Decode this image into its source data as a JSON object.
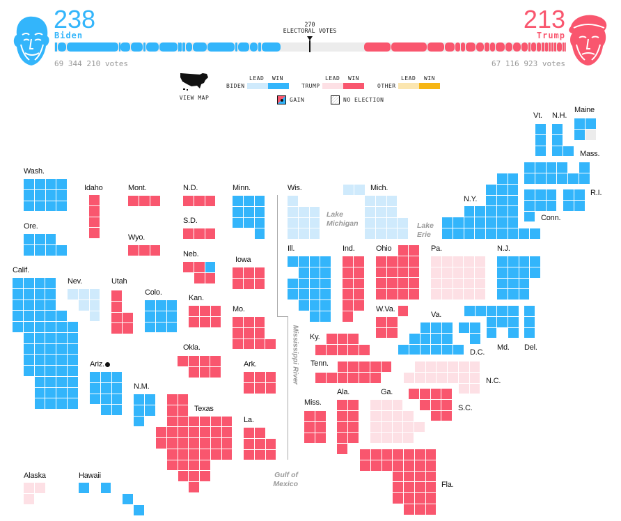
{
  "header": {
    "biden": {
      "count": "238",
      "name": "Biden",
      "votes": "69 344 210 votes",
      "color": "#33b5fb",
      "segments": [
        1,
        1,
        1,
        10,
        55,
        1,
        11,
        13,
        3,
        14,
        20,
        1,
        3,
        4,
        7,
        16,
        29,
        3,
        12,
        9,
        4,
        20
      ]
    },
    "trump": {
      "count": "213",
      "name": "Trump",
      "votes": "67 116 923 votes",
      "color": "#f9566e",
      "segments": [
        29,
        38,
        18,
        11,
        6,
        5,
        11,
        9,
        6,
        6,
        10,
        8,
        9,
        7,
        3,
        6,
        5,
        4,
        3,
        3,
        3,
        3,
        6,
        3,
        1
      ]
    },
    "threshold": {
      "value": "270",
      "label": "ELECTORAL VOTES"
    },
    "total_votes": 538
  },
  "legend": {
    "view_map": "VIEW MAP",
    "lead": "LEAD",
    "win": "WIN",
    "biden": "BIDEN",
    "trump": "TRUMP",
    "other": "OTHER",
    "gain": "GAIN",
    "no_election": "NO ELECTION"
  },
  "colors": {
    "biden-win": "#33b5fb",
    "biden-lead": "#cfeafc",
    "trump-win": "#f9566e",
    "trump-lead": "#fde0e5",
    "other-lead": "#fbe6b0",
    "other-win": "#f6b615",
    "uncalled": "#ececec"
  },
  "geo_labels": {
    "lake_michigan": [
      "Lake",
      "Michigan"
    ],
    "lake_erie": [
      "Lake",
      "Erie"
    ],
    "mississippi": "Mississippi River",
    "gulf": [
      "Gulf of",
      "Mexico"
    ]
  },
  "states": [
    {
      "name": "Wash.",
      "ev": 12,
      "status": "biden-win"
    },
    {
      "name": "Idaho",
      "ev": 4,
      "status": "trump-win"
    },
    {
      "name": "Mont.",
      "ev": 3,
      "status": "trump-win"
    },
    {
      "name": "N.D.",
      "ev": 3,
      "status": "trump-win"
    },
    {
      "name": "Minn.",
      "ev": 10,
      "status": "biden-win"
    },
    {
      "name": "Wis.",
      "ev": 10,
      "status": "biden-lead"
    },
    {
      "name": "Mich.",
      "ev": 16,
      "status": "biden-lead"
    },
    {
      "name": "Ore.",
      "ev": 7,
      "status": "biden-win"
    },
    {
      "name": "S.D.",
      "ev": 3,
      "status": "trump-win"
    },
    {
      "name": "Wyo.",
      "ev": 3,
      "status": "trump-win"
    },
    {
      "name": "Neb.",
      "ev": 5,
      "status": "trump-win"
    },
    {
      "name": "Iowa",
      "ev": 6,
      "status": "trump-win"
    },
    {
      "name": "Calif.",
      "ev": 55,
      "status": "biden-win"
    },
    {
      "name": "Nev.",
      "ev": 6,
      "status": "biden-lead"
    },
    {
      "name": "Utah",
      "ev": 6,
      "status": "trump-win"
    },
    {
      "name": "Colo.",
      "ev": 9,
      "status": "biden-win"
    },
    {
      "name": "Kan.",
      "ev": 6,
      "status": "trump-win"
    },
    {
      "name": "Mo.",
      "ev": 10,
      "status": "trump-win"
    },
    {
      "name": "Ill.",
      "ev": 20,
      "status": "biden-win"
    },
    {
      "name": "Ind.",
      "ev": 11,
      "status": "trump-win"
    },
    {
      "name": "Ohio",
      "ev": 18,
      "status": "trump-win"
    },
    {
      "name": "Pa.",
      "ev": 20,
      "status": "trump-lead"
    },
    {
      "name": "N.J.",
      "ev": 14,
      "status": "biden-win"
    },
    {
      "name": "W.Va.",
      "ev": 5,
      "status": "trump-win"
    },
    {
      "name": "Va.",
      "ev": 13,
      "status": "biden-win"
    },
    {
      "name": "Ky.",
      "ev": 8,
      "status": "trump-win"
    },
    {
      "name": "Tenn.",
      "ev": 11,
      "status": "trump-win"
    },
    {
      "name": "Okla.",
      "ev": 7,
      "status": "trump-win"
    },
    {
      "name": "Ark.",
      "ev": 6,
      "status": "trump-win"
    },
    {
      "name": "Ariz.",
      "ev": 11,
      "status": "biden-win",
      "gain": true
    },
    {
      "name": "N.M.",
      "ev": 5,
      "status": "biden-win"
    },
    {
      "name": "Texas",
      "ev": 38,
      "status": "trump-win"
    },
    {
      "name": "La.",
      "ev": 8,
      "status": "trump-win"
    },
    {
      "name": "Miss.",
      "ev": 6,
      "status": "trump-win"
    },
    {
      "name": "Ala.",
      "ev": 9,
      "status": "trump-win"
    },
    {
      "name": "Ga.",
      "ev": 16,
      "status": "trump-lead"
    },
    {
      "name": "S.C.",
      "ev": 9,
      "status": "trump-win"
    },
    {
      "name": "N.C.",
      "ev": 15,
      "status": "trump-lead"
    },
    {
      "name": "Fla.",
      "ev": 29,
      "status": "trump-win"
    },
    {
      "name": "D.C.",
      "ev": 3,
      "status": "biden-win"
    },
    {
      "name": "Md.",
      "ev": 10,
      "status": "biden-win"
    },
    {
      "name": "Del.",
      "ev": 3,
      "status": "biden-win"
    },
    {
      "name": "N.Y.",
      "ev": 29,
      "status": "biden-win"
    },
    {
      "name": "Conn.",
      "ev": 7,
      "status": "biden-win"
    },
    {
      "name": "R.I.",
      "ev": 4,
      "status": "biden-win"
    },
    {
      "name": "Mass.",
      "ev": 11,
      "status": "biden-win"
    },
    {
      "name": "Maine",
      "ev": 4,
      "status": "biden-win"
    },
    {
      "name": "Vt.",
      "ev": 3,
      "status": "biden-win"
    },
    {
      "name": "N.H.",
      "ev": 4,
      "status": "biden-win"
    },
    {
      "name": "Alaska",
      "ev": 3,
      "status": "trump-lead"
    },
    {
      "name": "Hawaii",
      "ev": 4,
      "status": "biden-win"
    }
  ]
}
